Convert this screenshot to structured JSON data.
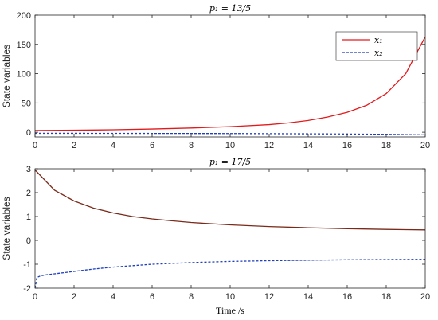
{
  "chart_data": [
    {
      "type": "line",
      "title": "p₁ = 13/5",
      "ylabel": "State variables",
      "xlabel": "",
      "xlim": [
        0,
        20
      ],
      "ylim": [
        -8,
        200
      ],
      "xticks": [
        0,
        2,
        4,
        6,
        8,
        10,
        12,
        14,
        16,
        18,
        20
      ],
      "yticks": [
        0,
        50,
        100,
        150,
        200
      ],
      "grid": false,
      "legend": "top-right",
      "series": [
        {
          "name": "x₁",
          "color": "#e31a1c",
          "style": "solid",
          "x": [
            0,
            2,
            4,
            6,
            8,
            10,
            12,
            13,
            14,
            15,
            16,
            17,
            18,
            19,
            20
          ],
          "y": [
            3.0,
            3.5,
            4.2,
            5.5,
            7.2,
            9.5,
            13,
            16,
            20,
            26,
            34,
            46,
            66,
            100,
            163
          ]
        },
        {
          "name": "x₂",
          "color": "#1f3fbf",
          "style": "dashed",
          "x": [
            0,
            2,
            4,
            6,
            8,
            10,
            12,
            14,
            16,
            18,
            20
          ],
          "y": [
            -1.8,
            -1.8,
            -1.9,
            -2.0,
            -2.1,
            -2.2,
            -2.4,
            -2.7,
            -3.0,
            -3.6,
            -4.5
          ]
        }
      ]
    },
    {
      "type": "line",
      "title": "p₁ = 17/5",
      "ylabel": "State variables",
      "xlabel": "Time /s",
      "xlim": [
        0,
        20
      ],
      "ylim": [
        -2,
        3
      ],
      "xticks": [
        0,
        2,
        4,
        6,
        8,
        10,
        12,
        14,
        16,
        18,
        20
      ],
      "yticks": [
        -2,
        -1,
        0,
        1,
        2,
        3
      ],
      "grid": false,
      "series": [
        {
          "color": "#7a2a1a",
          "style": "solid",
          "x": [
            0,
            1,
            2,
            3,
            4,
            5,
            6,
            7,
            8,
            9,
            10,
            12,
            14,
            16,
            18,
            20
          ],
          "y": [
            2.95,
            2.1,
            1.65,
            1.35,
            1.15,
            1.0,
            0.9,
            0.82,
            0.75,
            0.7,
            0.65,
            0.58,
            0.53,
            0.49,
            0.46,
            0.44
          ]
        },
        {
          "color": "#1f3fbf",
          "style": "dashed",
          "x": [
            0,
            0.1,
            0.3,
            0.6,
            1,
            2,
            3,
            4,
            5,
            6,
            8,
            10,
            12,
            14,
            16,
            18,
            20
          ],
          "y": [
            -2.0,
            -1.55,
            -1.48,
            -1.44,
            -1.4,
            -1.3,
            -1.2,
            -1.12,
            -1.06,
            -1.0,
            -0.93,
            -0.88,
            -0.85,
            -0.83,
            -0.81,
            -0.8,
            -0.79
          ]
        }
      ]
    }
  ]
}
